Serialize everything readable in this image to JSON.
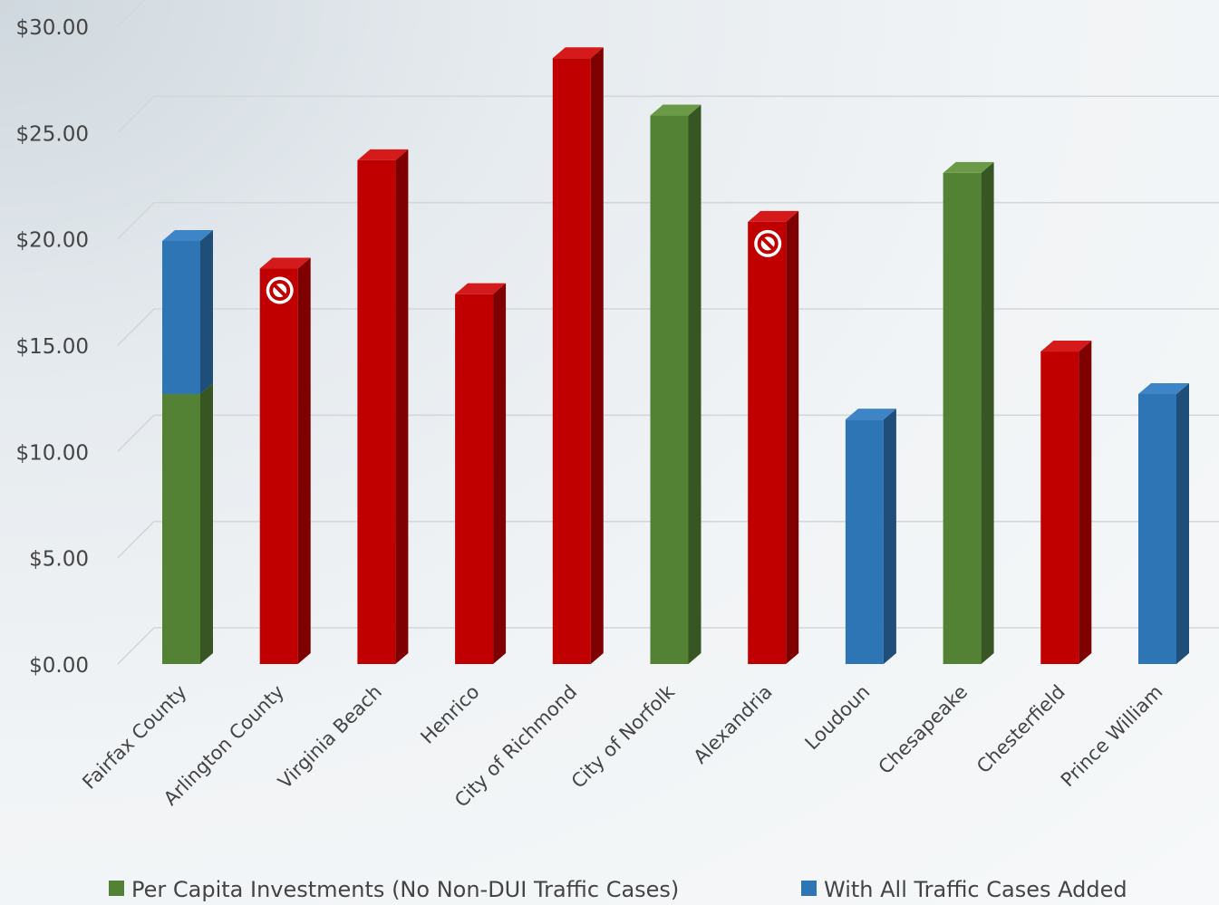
{
  "chart_data": {
    "type": "bar",
    "stacked": true,
    "style": "3d-column",
    "categories": [
      "Fairfax County",
      "Arlington County",
      "Virginia Beach",
      "Henrico",
      "City of Richmond",
      "City of Norfolk",
      "Alexandria",
      "Loudoun",
      "Chesapeake",
      "Chesterfield",
      "Prince William"
    ],
    "ylim": [
      0,
      30
    ],
    "y_ticks": [
      0,
      5,
      10,
      15,
      20,
      25,
      30
    ],
    "y_tick_labels": [
      "$0.00",
      "$5.00",
      "$10.00",
      "$15.00",
      "$20.00",
      "$25.00",
      "$30.00"
    ],
    "grid": true,
    "legend_position": "bottom",
    "series": [
      {
        "name": "Per Capita Investments (No Non-DUI Traffic Cases)",
        "color": "#548235",
        "values": [
          12.7,
          0,
          0,
          0,
          0,
          25.8,
          0,
          0,
          23.1,
          0,
          0
        ]
      },
      {
        "name": "With All Traffic Cases Added",
        "color": "#2e75b6",
        "values": [
          7.2,
          0,
          0,
          0,
          0,
          0,
          0,
          11.5,
          0,
          0,
          12.7
        ]
      }
    ],
    "other_bars": {
      "color": "#c00000",
      "values": [
        0,
        18.6,
        23.7,
        17.4,
        28.5,
        0,
        20.8,
        0,
        0,
        14.7,
        0
      ]
    },
    "annotations": [
      {
        "category": "Arlington County",
        "icon": "prohibited-icon"
      },
      {
        "category": "Alexandria",
        "icon": "prohibited-icon"
      }
    ],
    "colors": {
      "green": "#548235",
      "green_side": "#375623",
      "green_top": "#6a9a45",
      "blue": "#2e75b6",
      "blue_side": "#1f4e79",
      "blue_top": "#3d85c6",
      "red": "#c00000",
      "red_side": "#7f0000",
      "red_top": "#d41a1a"
    }
  }
}
